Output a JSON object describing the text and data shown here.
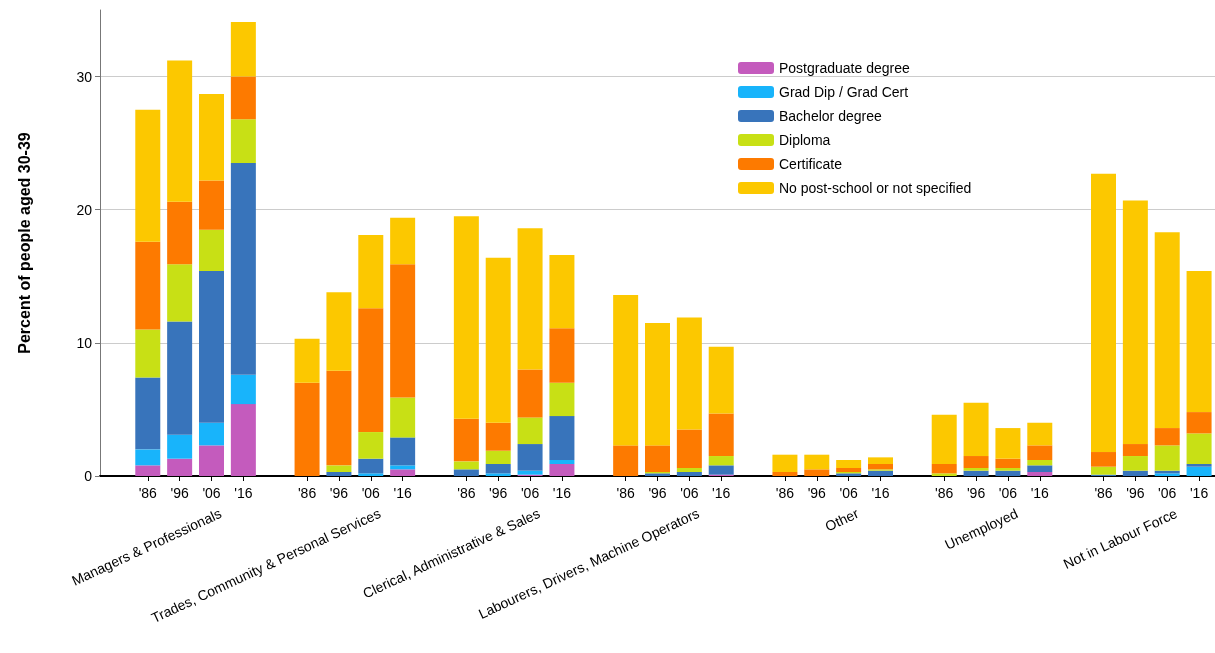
{
  "chart_data": {
    "type": "bar",
    "stacked": true,
    "ylabel": "Percent of people aged 30-39",
    "categories": [
      "'86",
      "'96",
      "'06",
      "'16",
      "'86",
      "'96",
      "'06",
      "'16",
      "'86",
      "'96",
      "'06",
      "'16",
      "'86",
      "'96",
      "'06",
      "'16",
      "'86",
      "'96",
      "'06",
      "'16",
      "'86",
      "'96",
      "'06",
      "'16",
      "'86",
      "'96",
      "'06",
      "'16"
    ],
    "annotations": [
      "Managers & Professionals",
      "Trades, Community & Personal Services",
      "Clerical, Administrative & Sales",
      "Labourers, Drivers, Machine Operators",
      "Other",
      "Unemployed",
      "Not in Labour Force"
    ],
    "series": [
      {
        "name": "Postgraduate degree",
        "color": "#c45bbd",
        "values": [
          0.8,
          1.3,
          2.3,
          5.4,
          0,
          0,
          0,
          0.5,
          0,
          0,
          0.1,
          0.9,
          0,
          0,
          0,
          0.1,
          0,
          0,
          0,
          0,
          0,
          0,
          0,
          0.3,
          0,
          0,
          0,
          0
        ]
      },
      {
        "name": "Grad Dip / Grad Cert",
        "color": "#18b4fb",
        "values": [
          1.2,
          1.8,
          1.7,
          2.2,
          0,
          0,
          0.2,
          0.3,
          0,
          0.2,
          0.3,
          0.3,
          0,
          0,
          0,
          0,
          0,
          0,
          0,
          0,
          0,
          0,
          0,
          0,
          0,
          0,
          0.2,
          0.7
        ]
      },
      {
        "name": "Bachelor degree",
        "color": "#3874bb",
        "values": [
          5.4,
          8.5,
          11.4,
          15.9,
          0,
          0.3,
          1.1,
          2.1,
          0.5,
          0.7,
          2.0,
          3.3,
          0,
          0.2,
          0.3,
          0.7,
          0,
          0,
          0.2,
          0.4,
          0,
          0.4,
          0.4,
          0.5,
          0.1,
          0.4,
          0.2,
          0.2
        ]
      },
      {
        "name": "Diploma",
        "color": "#c8e015",
        "values": [
          3.6,
          4.3,
          3.1,
          3.3,
          0,
          0.5,
          2.0,
          3.0,
          0.6,
          1.0,
          2.0,
          2.5,
          0,
          0.1,
          0.3,
          0.7,
          0,
          0,
          0.1,
          0.1,
          0.2,
          0.2,
          0.2,
          0.4,
          0.6,
          1.1,
          1.9,
          2.3
        ]
      },
      {
        "name": "Certificate",
        "color": "#fd7a00",
        "values": [
          6.6,
          4.7,
          3.7,
          3.2,
          7.0,
          7.1,
          9.3,
          10.0,
          3.2,
          2.1,
          3.6,
          4.1,
          2.3,
          2.0,
          2.9,
          3.2,
          0.3,
          0.5,
          0.3,
          0.4,
          0.7,
          0.9,
          0.7,
          1.1,
          1.1,
          0.9,
          1.3,
          1.6
        ]
      },
      {
        "name": "No post-school or not specified",
        "color": "#fcc800",
        "values": [
          9.9,
          10.6,
          6.5,
          4.1,
          3.3,
          5.9,
          5.5,
          3.5,
          15.2,
          12.4,
          10.6,
          5.5,
          11.3,
          9.2,
          8.4,
          5.0,
          1.3,
          1.1,
          0.6,
          0.5,
          3.7,
          4.0,
          2.3,
          1.7,
          20.9,
          18.3,
          14.7,
          10.6
        ]
      }
    ],
    "ylim": [
      0,
      35
    ],
    "yticks": [
      0,
      10,
      20,
      30
    ],
    "grid": "y",
    "legend": "top right"
  }
}
